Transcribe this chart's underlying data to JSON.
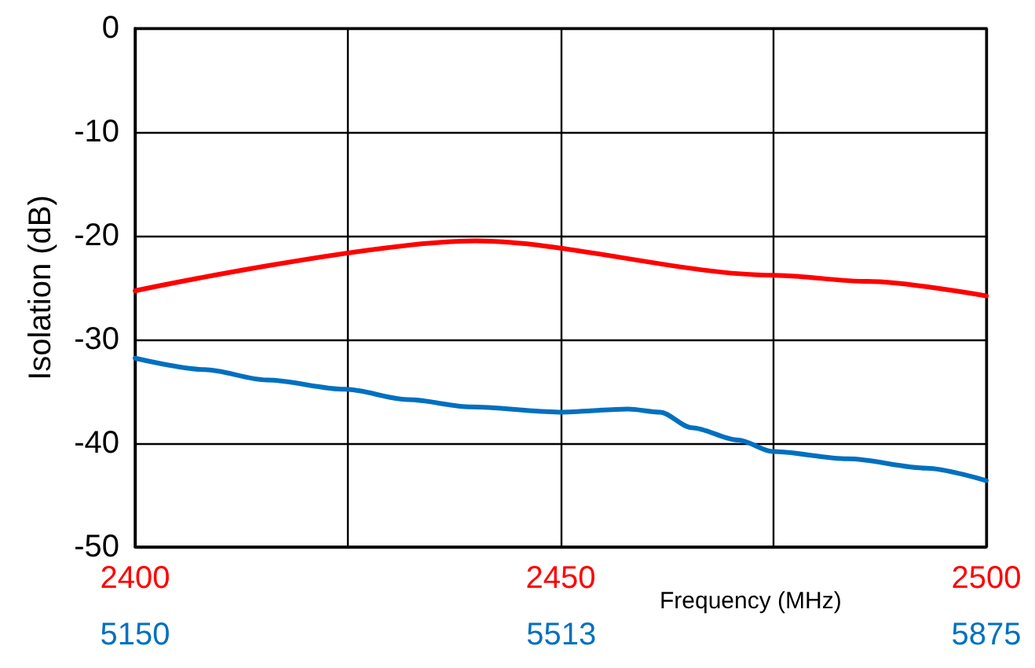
{
  "chart_data": {
    "type": "line",
    "xlabel": "Frequency (MHz)",
    "ylabel": "Isolation (dB)",
    "xlim": [
      2400,
      2500
    ],
    "xticks": [
      2400,
      {
        "value": 2425,
        "label": null
      },
      2450,
      {
        "value": 2475,
        "label": null
      },
      2500
    ],
    "x2lim": [
      5150,
      5875
    ],
    "x2ticks": [
      5150,
      5513,
      5875
    ],
    "ylim": [
      -50,
      0
    ],
    "yticks": [
      -50,
      -40,
      -30,
      -20,
      -10,
      0
    ],
    "grid": true,
    "marker": "none",
    "line_style": "solid",
    "series": [
      {
        "color": "#ff0000",
        "x": [
          2400,
          2440,
          2475,
          2486,
          2500
        ],
        "values": [
          -25.3,
          -20.5,
          -23.8,
          -24.4,
          -25.8
        ]
      },
      {
        "color": "#0070c0",
        "axis": "x2",
        "x": [
          5150,
          5209,
          5262,
          5329,
          5383,
          5436,
          5511,
          5570,
          5597,
          5624,
          5664,
          5693,
          5757,
          5824,
          5875
        ],
        "values": [
          -31.8,
          -32.9,
          -33.9,
          -34.8,
          -35.8,
          -36.5,
          -37.0,
          -36.7,
          -37.0,
          -38.5,
          -39.7,
          -40.8,
          -41.5,
          -42.4,
          -43.6
        ]
      }
    ]
  }
}
